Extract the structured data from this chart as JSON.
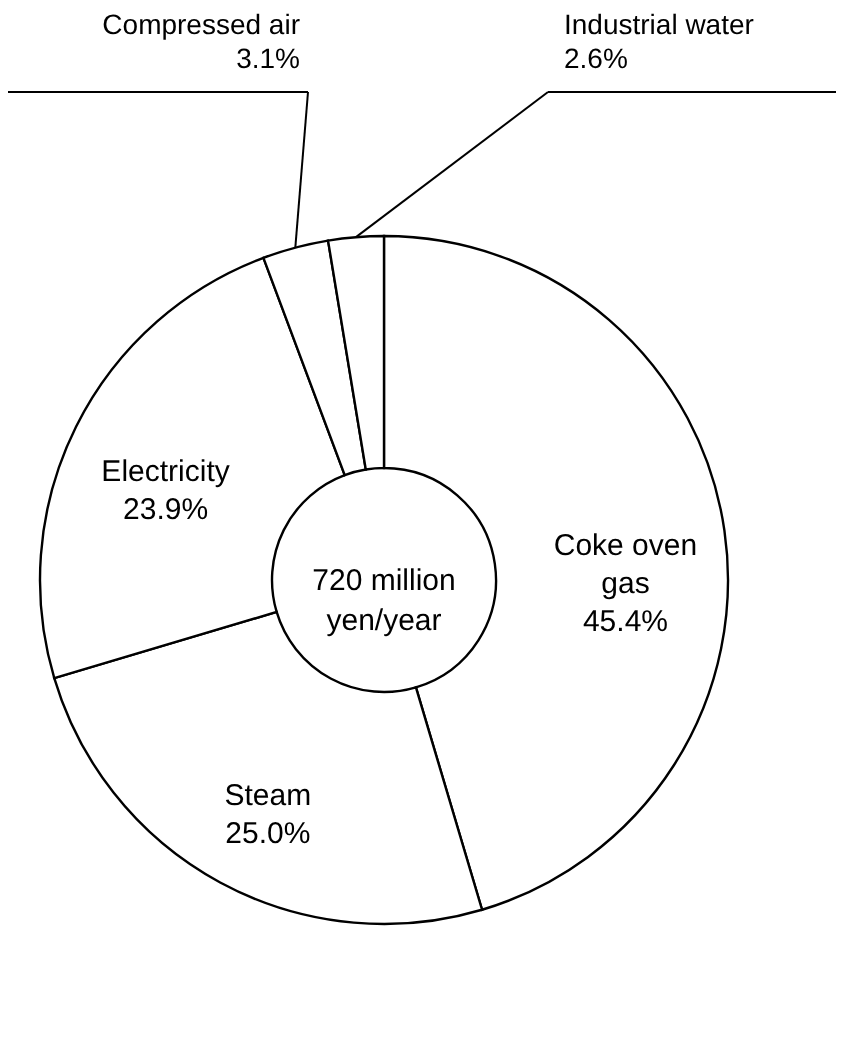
{
  "chart_data": {
    "type": "donut",
    "categories": [
      "Coke oven gas",
      "Steam",
      "Electricity",
      "Compressed air",
      "Industrial water"
    ],
    "values": [
      45.4,
      25.0,
      23.9,
      3.1,
      2.6
    ],
    "colors": [
      "#ffffff",
      "#ffffff",
      "#ffffff",
      "#ffffff",
      "#ffffff"
    ],
    "value_labels": [
      "45.4%",
      "25.0%",
      "23.9%",
      "3.1%",
      "2.6%"
    ],
    "annotations": [
      "720 million yen/year"
    ]
  }
}
